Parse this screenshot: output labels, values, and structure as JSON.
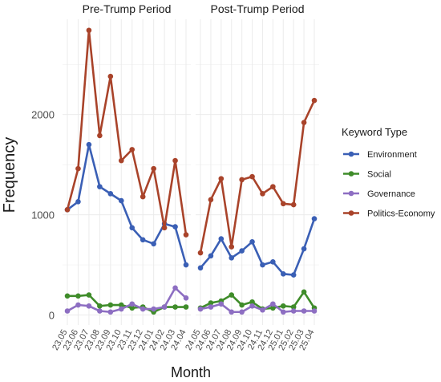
{
  "chart_data": {
    "type": "line",
    "xlabel": "Month",
    "ylabel": "Frequency",
    "ylim": [
      -100,
      2950
    ],
    "yticks": [
      0,
      1000,
      2000
    ],
    "grid": true,
    "legend_position": "right",
    "legend_title": "Keyword Type",
    "panels": [
      {
        "title": "Pre-Trump Period",
        "categories": [
          "23.05",
          "23.06",
          "23.07",
          "23.08",
          "23.09",
          "23.10",
          "23.11",
          "23.12",
          "24.01",
          "24.02",
          "24.03",
          "24.04"
        ],
        "series": [
          {
            "name": "Environment",
            "color": "#3a5fb5",
            "values": [
              1050,
              1130,
              1700,
              1280,
              1210,
              1140,
              870,
              750,
              710,
              910,
              880,
              500
            ]
          },
          {
            "name": "Social",
            "color": "#3f8c2a",
            "values": [
              190,
              190,
              200,
              90,
              100,
              100,
              70,
              80,
              30,
              80,
              80,
              80
            ]
          },
          {
            "name": "Governance",
            "color": "#8d6ec2",
            "values": [
              40,
              100,
              90,
              40,
              30,
              60,
              110,
              60,
              60,
              80,
              270,
              170
            ]
          },
          {
            "name": "Politics-Economy",
            "color": "#a9432a",
            "values": [
              1050,
              1460,
              2840,
              1790,
              2380,
              1540,
              1650,
              1180,
              1460,
              870,
              1540,
              800
            ]
          }
        ]
      },
      {
        "title": "Post-Trump Period",
        "categories": [
          "24.05",
          "24.06",
          "24.07",
          "24.08",
          "24.09",
          "24.10",
          "24.11",
          "24.12",
          "25.01",
          "25.02",
          "25.03",
          "25.04"
        ],
        "series": [
          {
            "name": "Environment",
            "color": "#3a5fb5",
            "values": [
              470,
              590,
              760,
              570,
              640,
              730,
              500,
              530,
              410,
              400,
              660,
              960
            ]
          },
          {
            "name": "Social",
            "color": "#3f8c2a",
            "values": [
              70,
              120,
              140,
              200,
              100,
              130,
              60,
              70,
              90,
              80,
              230,
              70
            ]
          },
          {
            "name": "Governance",
            "color": "#8d6ec2",
            "values": [
              60,
              80,
              110,
              30,
              30,
              90,
              50,
              110,
              30,
              40,
              40,
              40
            ]
          },
          {
            "name": "Politics-Economy",
            "color": "#a9432a",
            "values": [
              620,
              1150,
              1360,
              680,
              1350,
              1380,
              1210,
              1280,
              1110,
              1100,
              1920,
              2140
            ]
          }
        ]
      }
    ]
  }
}
